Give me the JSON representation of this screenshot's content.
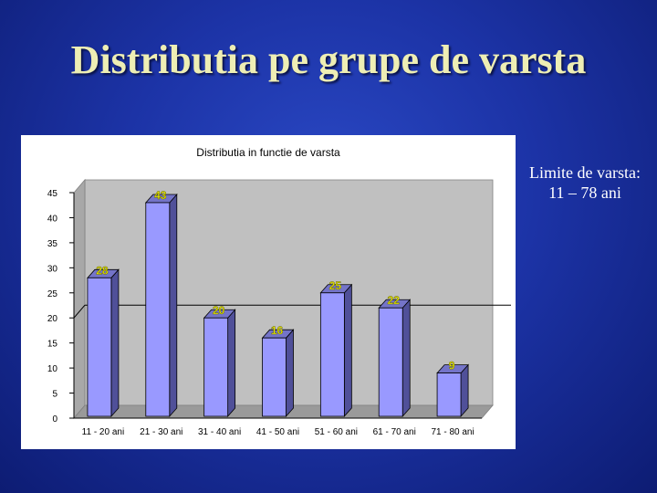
{
  "slide": {
    "title": "Distributia pe grupe de varsta",
    "note_line1": "Limite de varsta:",
    "note_line2": "11 – 78 ani"
  },
  "colors": {
    "bar_front": "#9999ff",
    "bar_side": "#505099",
    "bar_top": "#7474c8",
    "data_label": "#e8e800",
    "plot_wall": "#c0c0c0"
  },
  "chart_data": {
    "type": "bar",
    "title": "Distributia in functie de varsta",
    "categories": [
      "11 - 20 ani",
      "21 - 30 ani",
      "31 - 40 ani",
      "41 - 50 ani",
      "51 - 60 ani",
      "61 - 70 ani",
      "71 - 80 ani"
    ],
    "values": [
      28,
      43,
      20,
      16,
      25,
      22,
      9
    ],
    "data_labels": [
      "28",
      "43",
      "20",
      "16",
      "25",
      "22",
      "9"
    ],
    "y_ticks": [
      "0",
      "5",
      "10",
      "15",
      "20",
      "25",
      "30",
      "35",
      "40",
      "45"
    ],
    "ylim": [
      0,
      45
    ],
    "xlabel": "",
    "ylabel": "",
    "style": "3d-column",
    "reference_line": 20,
    "legend": "none"
  }
}
